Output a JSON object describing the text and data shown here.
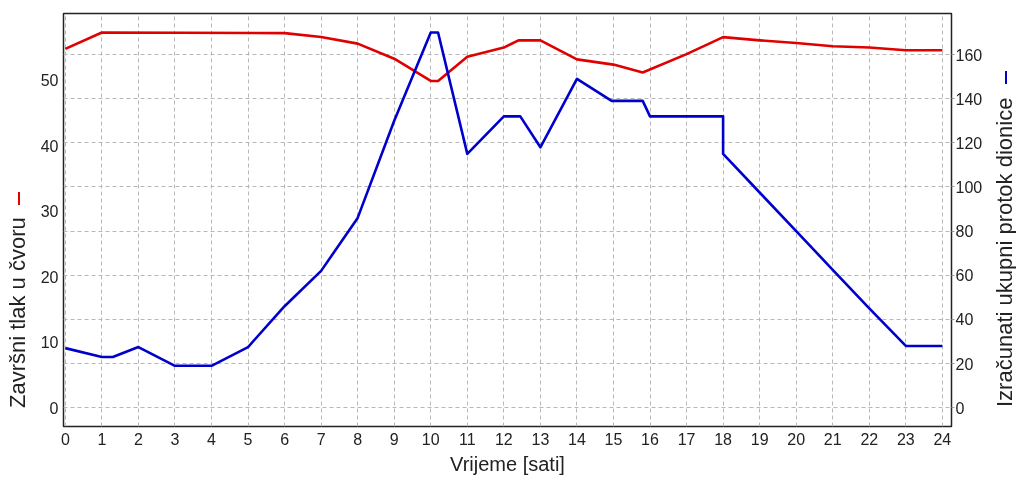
{
  "chart_data": {
    "type": "line",
    "xlabel": "Vrijeme [sati]",
    "ylabel": "Završni tlak u čvoru",
    "y2label": "Izračunati ukupni protok dionice",
    "xlim": [
      -0.05,
      24.25
    ],
    "xticks": [
      0,
      1,
      2,
      3,
      4,
      5,
      6,
      7,
      8,
      9,
      10,
      11,
      12,
      13,
      14,
      15,
      16,
      17,
      18,
      19,
      20,
      21,
      22,
      23,
      24
    ],
    "ylim": [
      -2.85,
      60.2
    ],
    "yticks": [
      0,
      10,
      20,
      30,
      40,
      50
    ],
    "y2lim": [
      -8.5,
      178.6
    ],
    "y2ticks": [
      0,
      20,
      40,
      60,
      80,
      100,
      120,
      140,
      160
    ],
    "grid": true,
    "series": [
      {
        "color": "#e00000",
        "x": [
          0,
          1,
          6,
          7,
          8,
          9,
          10,
          10.2,
          11,
          12,
          12.4,
          13,
          14,
          15,
          15.8,
          17,
          18,
          19,
          20,
          21,
          22,
          23,
          24
        ],
        "values": [
          54.8,
          57.3,
          57.2,
          56.6,
          55.6,
          53.3,
          49.9,
          49.9,
          53.6,
          55.0,
          56.1,
          56.1,
          53.2,
          52.4,
          51.2,
          54.0,
          56.6,
          56.1,
          55.7,
          55.2,
          55.0,
          54.6,
          54.6
        ]
      },
      {
        "color": "#0000cc",
        "axis": "y2",
        "x": [
          0,
          1,
          1.3,
          2,
          3,
          4,
          5,
          6,
          7,
          8,
          9,
          10,
          10.2,
          11,
          12,
          12.45,
          13,
          14,
          14.95,
          15.8,
          16,
          18,
          18,
          19,
          20,
          21,
          22,
          23,
          24
        ],
        "values": [
          27,
          23,
          23,
          27.5,
          19,
          19,
          27.5,
          46,
          62,
          86,
          130,
          170,
          170,
          115,
          132,
          132,
          118,
          149,
          139,
          139,
          132,
          132,
          115,
          97.5,
          80,
          62.5,
          45,
          28,
          28
        ]
      }
    ]
  }
}
